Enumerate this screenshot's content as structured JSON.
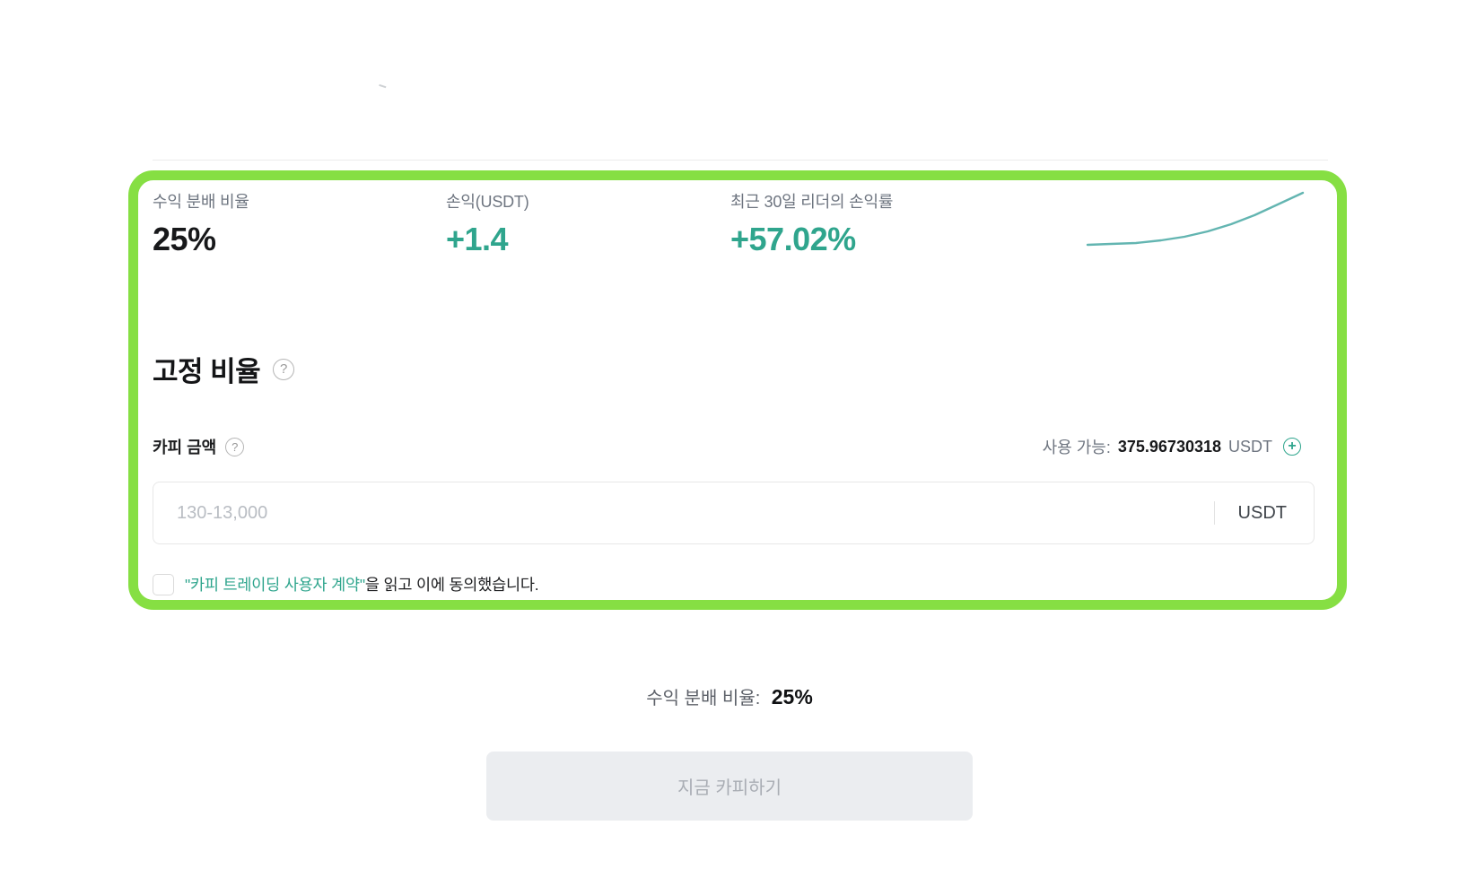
{
  "panel": {
    "stats": [
      {
        "label": "수익 분배 비율",
        "value": "25%"
      },
      {
        "label": "손익(USDT)",
        "value": "+1.4"
      },
      {
        "label": "최근 30일 리더의 손익률",
        "value": "+57.02%"
      }
    ],
    "sparkline": {
      "color": "#63b5b1",
      "points": [
        [
          2,
          64
        ],
        [
          28,
          63
        ],
        [
          56,
          62
        ],
        [
          84,
          59
        ],
        [
          110,
          55
        ],
        [
          136,
          49
        ],
        [
          162,
          41
        ],
        [
          188,
          31
        ],
        [
          214,
          19
        ],
        [
          242,
          6
        ]
      ]
    },
    "section_title": "고정 비율",
    "help_icon_glyph": "?",
    "copy_amount_label": "카피 금액",
    "available": {
      "label": "사용 가능:",
      "value": "375.96730318",
      "unit": "USDT"
    },
    "amount_input": {
      "placeholder": "130-13,000",
      "value": "",
      "unit": "USDT"
    },
    "agreement": {
      "checked": false,
      "link": "\"카피 트레이딩 사용자 계약\"",
      "text": "을 읽고 이에 동의했습니다."
    }
  },
  "footer": {
    "share_label": "수익 분배 비율:",
    "share_value": "25%",
    "button_label": "지금 카피하기",
    "button_enabled": false
  },
  "colors": {
    "accent_teal": "#2fa58d",
    "sparkline_teal": "#63b5b1",
    "highlight_green_border": "#86df43",
    "disabled_button_bg": "#ebedf0",
    "disabled_button_text": "#a9adb4"
  }
}
